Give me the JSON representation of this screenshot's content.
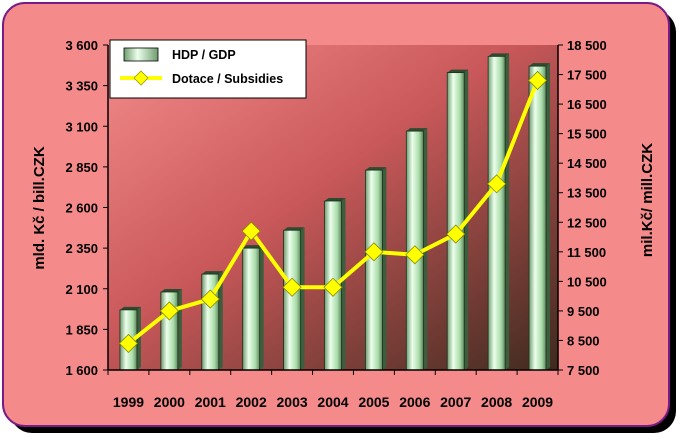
{
  "chart_data": {
    "type": "bar+line",
    "categories": [
      "1999",
      "2000",
      "2001",
      "2002",
      "2003",
      "2004",
      "2005",
      "2006",
      "2007",
      "2008",
      "2009"
    ],
    "series": [
      {
        "name": "HDP / GDP",
        "kind": "bar",
        "axis": "left",
        "values": [
          1970,
          2080,
          2190,
          2350,
          2460,
          2640,
          2830,
          3070,
          3430,
          3530,
          3470
        ]
      },
      {
        "name": "Dotace / Subsidies",
        "kind": "line",
        "axis": "right",
        "values": [
          8400,
          9500,
          9900,
          12200,
          10300,
          10300,
          11500,
          11400,
          12100,
          13800,
          17300
        ]
      }
    ],
    "left_axis": {
      "label": "mld. Kč / bill.CZK",
      "ylim": [
        1600,
        3600
      ],
      "ticks": [
        1600,
        1850,
        2100,
        2350,
        2600,
        2850,
        3100,
        3350,
        3600
      ],
      "tick_labels": [
        "1 600",
        "1 850",
        "2 100",
        "2 350",
        "2 600",
        "2 850",
        "3 100",
        "3 350",
        "3 600"
      ]
    },
    "right_axis": {
      "label": "mil.Kč/ mill.CZK",
      "ylim": [
        7500,
        18500
      ],
      "ticks": [
        7500,
        8500,
        9500,
        10500,
        11500,
        12500,
        13500,
        14500,
        15500,
        16500,
        17500,
        18500
      ],
      "tick_labels": [
        "7 500",
        "8 500",
        "9 500",
        "10 500",
        "11 500",
        "12 500",
        "13 500",
        "14 500",
        "15 500",
        "16 500",
        "17 500",
        "18 500"
      ]
    },
    "legend_position": "top-left",
    "grid": false
  },
  "colors": {
    "background": "#f58a8a",
    "bar": "#a8dca8",
    "line": "#ffff00"
  }
}
